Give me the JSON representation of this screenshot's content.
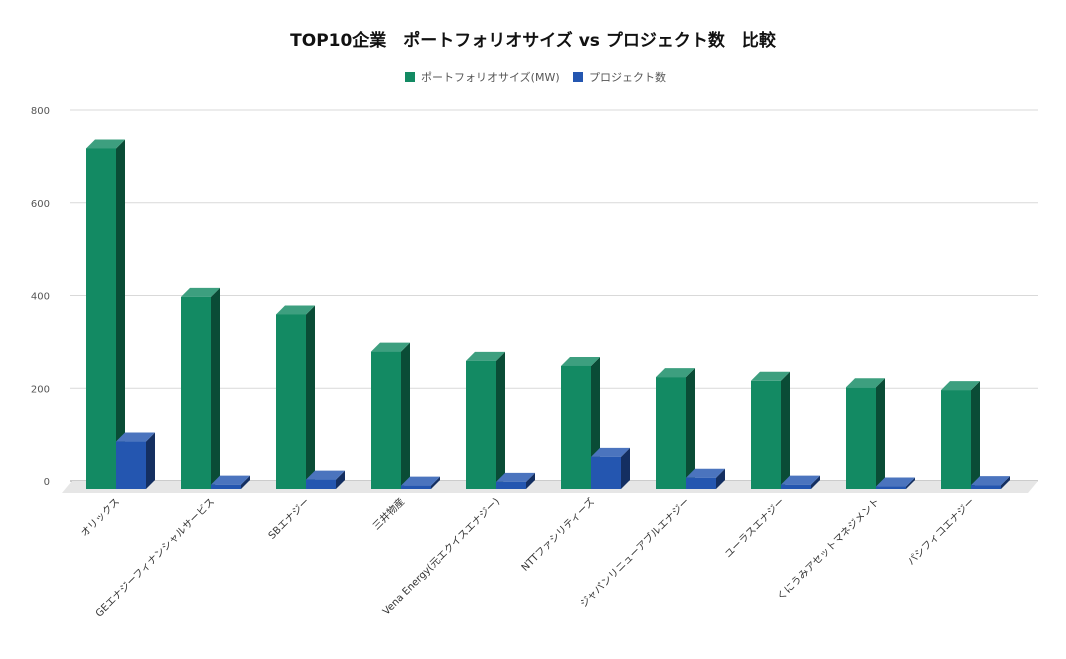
{
  "chart_data": {
    "type": "bar",
    "title": "TOP10企業　ポートフォリオサイズ vs プロジェクト数　比較",
    "categories": [
      "オリックス",
      "GEエナジーフィナンシャルサービス",
      "SBエナジー",
      "三井物産",
      "Vena Energy(元エクイスエナジー)",
      "NTTファシリティーズ",
      "ジャパンリニューアブルエナジー",
      "ユーラスエナジー",
      "くにうみアセットマネジメント",
      "パシフィコエナジー"
    ],
    "series": [
      {
        "name": "ポートフォリオサイズ(MW)",
        "color": "#138a63",
        "values": [
          730,
          410,
          372,
          292,
          272,
          261,
          237,
          229,
          215,
          209
        ]
      },
      {
        "name": "プロジェクト数",
        "color": "#2456b0",
        "values": [
          98,
          5,
          16,
          3,
          11,
          65,
          20,
          5,
          1,
          4
        ]
      }
    ],
    "ylim": [
      0,
      800
    ],
    "yticks": [
      0,
      200,
      400,
      600,
      800
    ],
    "xlabel": "",
    "ylabel": "",
    "grid": true,
    "legend": "top",
    "style": "3d-columns"
  }
}
